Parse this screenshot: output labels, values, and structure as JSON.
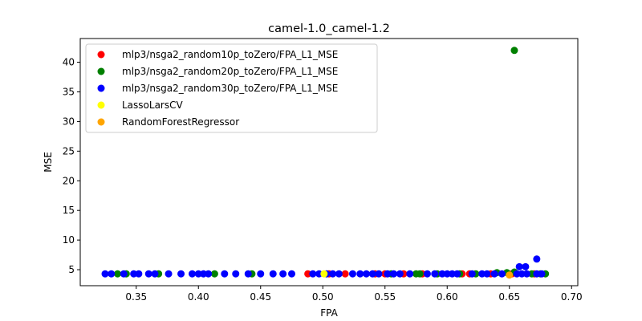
{
  "chart_data": {
    "type": "scatter",
    "title": "camel-1.0_camel-1.2",
    "xlabel": "FPA",
    "ylabel": "MSE",
    "xlim": [
      0.305,
      0.705
    ],
    "ylim": [
      2.3,
      44.0
    ],
    "xticks": [
      0.35,
      0.4,
      0.45,
      0.5,
      0.55,
      0.6,
      0.65,
      0.7
    ],
    "xtick_labels": [
      "0.35",
      "0.40",
      "0.45",
      "0.50",
      "0.55",
      "0.60",
      "0.65",
      "0.70"
    ],
    "yticks": [
      5,
      10,
      15,
      20,
      25,
      30,
      35,
      40
    ],
    "ytick_labels": [
      "5",
      "10",
      "15",
      "20",
      "25",
      "30",
      "35",
      "40"
    ],
    "grid": false,
    "legend_position": "top-left",
    "series": [
      {
        "name": "mlp3/nsga2_random10p_toZero/FPA_L1_MSE",
        "color": "#ff0000",
        "points": [
          [
            0.488,
            4.3
          ],
          [
            0.505,
            4.3
          ],
          [
            0.518,
            4.3
          ],
          [
            0.542,
            4.3
          ],
          [
            0.55,
            4.3
          ],
          [
            0.565,
            4.3
          ],
          [
            0.58,
            4.3
          ],
          [
            0.612,
            4.3
          ],
          [
            0.618,
            4.3
          ],
          [
            0.635,
            4.3
          ],
          [
            0.652,
            4.3
          ],
          [
            0.67,
            4.3
          ]
        ]
      },
      {
        "name": "mlp3/nsga2_random20p_toZero/FPA_L1_MSE",
        "color": "#008000",
        "points": [
          [
            0.335,
            4.3
          ],
          [
            0.342,
            4.3
          ],
          [
            0.368,
            4.3
          ],
          [
            0.413,
            4.3
          ],
          [
            0.443,
            4.3
          ],
          [
            0.555,
            4.3
          ],
          [
            0.575,
            4.3
          ],
          [
            0.578,
            4.3
          ],
          [
            0.592,
            4.3
          ],
          [
            0.61,
            4.3
          ],
          [
            0.623,
            4.3
          ],
          [
            0.64,
            4.5
          ],
          [
            0.648,
            4.5
          ],
          [
            0.654,
            4.6
          ],
          [
            0.668,
            4.3
          ],
          [
            0.675,
            4.3
          ],
          [
            0.679,
            4.3
          ],
          [
            0.654,
            42.0
          ]
        ]
      },
      {
        "name": "mlp3/nsga2_random30p_toZero/FPA_L1_MSE",
        "color": "#0000ff",
        "points": [
          [
            0.325,
            4.3
          ],
          [
            0.33,
            4.3
          ],
          [
            0.34,
            4.3
          ],
          [
            0.348,
            4.3
          ],
          [
            0.352,
            4.3
          ],
          [
            0.36,
            4.3
          ],
          [
            0.365,
            4.3
          ],
          [
            0.376,
            4.3
          ],
          [
            0.386,
            4.3
          ],
          [
            0.395,
            4.3
          ],
          [
            0.4,
            4.3
          ],
          [
            0.404,
            4.3
          ],
          [
            0.408,
            4.3
          ],
          [
            0.421,
            4.3
          ],
          [
            0.43,
            4.3
          ],
          [
            0.44,
            4.3
          ],
          [
            0.45,
            4.3
          ],
          [
            0.46,
            4.3
          ],
          [
            0.468,
            4.3
          ],
          [
            0.475,
            4.3
          ],
          [
            0.492,
            4.3
          ],
          [
            0.497,
            4.3
          ],
          [
            0.503,
            4.3
          ],
          [
            0.508,
            4.3
          ],
          [
            0.513,
            4.3
          ],
          [
            0.524,
            4.3
          ],
          [
            0.53,
            4.3
          ],
          [
            0.535,
            4.3
          ],
          [
            0.54,
            4.3
          ],
          [
            0.545,
            4.3
          ],
          [
            0.552,
            4.3
          ],
          [
            0.557,
            4.3
          ],
          [
            0.562,
            4.3
          ],
          [
            0.57,
            4.3
          ],
          [
            0.584,
            4.3
          ],
          [
            0.59,
            4.3
          ],
          [
            0.596,
            4.3
          ],
          [
            0.6,
            4.3
          ],
          [
            0.604,
            4.3
          ],
          [
            0.608,
            4.3
          ],
          [
            0.62,
            4.3
          ],
          [
            0.628,
            4.3
          ],
          [
            0.632,
            4.3
          ],
          [
            0.638,
            4.3
          ],
          [
            0.644,
            4.3
          ],
          [
            0.656,
            4.3
          ],
          [
            0.66,
            4.3
          ],
          [
            0.664,
            4.3
          ],
          [
            0.672,
            4.3
          ],
          [
            0.676,
            4.3
          ],
          [
            0.658,
            5.5
          ],
          [
            0.663,
            5.5
          ],
          [
            0.672,
            6.8
          ]
        ]
      },
      {
        "name": "LassoLarsCV",
        "color": "#ffff00",
        "points": [
          [
            0.501,
            4.3
          ]
        ]
      },
      {
        "name": "RandomForestRegressor",
        "color": "#ffa500",
        "points": [
          [
            0.65,
            4.1
          ]
        ]
      }
    ]
  }
}
